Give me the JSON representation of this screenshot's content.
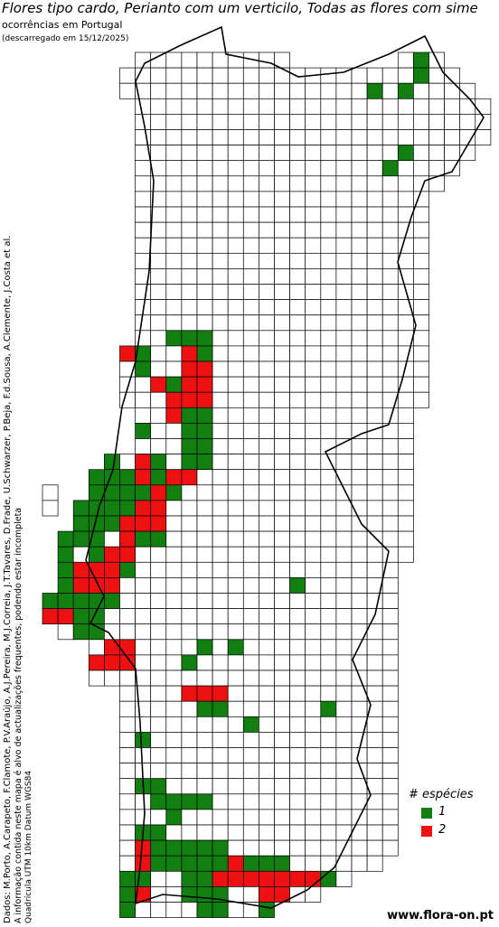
{
  "header": {
    "title": "Flores tipo cardo, Perianto com um verticilo, Todas as flores com sime",
    "subtitle": "ocorrências em Portugal",
    "download_note": "(descarregado em 15/12/2025)"
  },
  "side_notes": [
    "Dados: M.Porto, A.Carapeto, F.Clamote, P.V.Araújo, A.J.Pereira, M.J.Correia, J.T.Tavares, D.Frade, U.Schwarzer, P.Beja, F.d.Sousa, A.Clemente, J.Costa et al.",
    "A informação contida neste mapa é alvo de actualizações frequentes, podendo estar incompleta",
    "Quadrícula UTM 10km Datum WGS84"
  ],
  "legend": {
    "title": "# espécies",
    "items": [
      {
        "label": "1",
        "color": "#118011"
      },
      {
        "label": "2",
        "color": "#ee1111"
      }
    ]
  },
  "footer": {
    "logo": "www.flora-on.pt"
  }
}
